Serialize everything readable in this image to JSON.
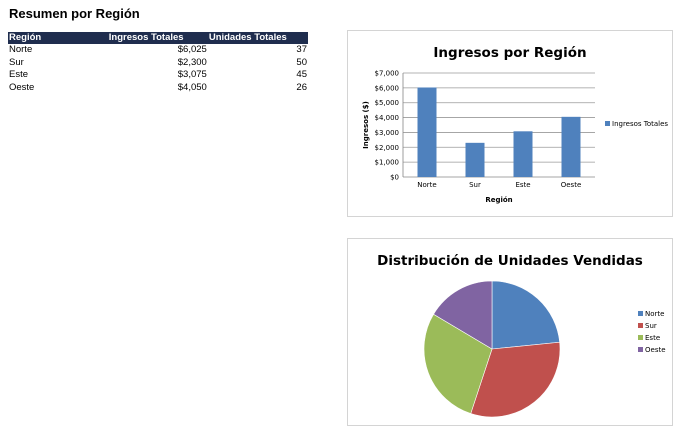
{
  "sheet": {
    "title": "Resumen por Región"
  },
  "table": {
    "headers": [
      "Región",
      "Ingresos Totales",
      "Unidades Totales"
    ],
    "rows": [
      [
        "Norte",
        "$6,025",
        "37"
      ],
      [
        "Sur",
        "$2,300",
        "50"
      ],
      [
        "Este",
        "$3,075",
        "45"
      ],
      [
        "Oeste",
        "$4,050",
        "26"
      ]
    ]
  },
  "chart_data": [
    {
      "type": "bar",
      "title": "Ingresos por Región",
      "xlabel": "Región",
      "ylabel": "Ingresos ($)",
      "categories": [
        "Norte",
        "Sur",
        "Este",
        "Oeste"
      ],
      "series": [
        {
          "name": "Ingresos Totales",
          "values": [
            6025,
            2300,
            3075,
            4050
          ]
        }
      ],
      "ylim": [
        0,
        7000
      ],
      "yticks": [
        "$0",
        "$1,000",
        "$2,000",
        "$3,000",
        "$4,000",
        "$5,000",
        "$6,000",
        "$7,000"
      ],
      "grid": true,
      "legend": "right",
      "color": "#4f81bd"
    },
    {
      "type": "pie",
      "title": "Distribución de Unidades Vendidas",
      "categories": [
        "Norte",
        "Sur",
        "Este",
        "Oeste"
      ],
      "values": [
        37,
        50,
        45,
        26
      ],
      "colors": [
        "#4f81bd",
        "#c0504d",
        "#9bbb59",
        "#8064a2"
      ],
      "legend": "right"
    }
  ]
}
